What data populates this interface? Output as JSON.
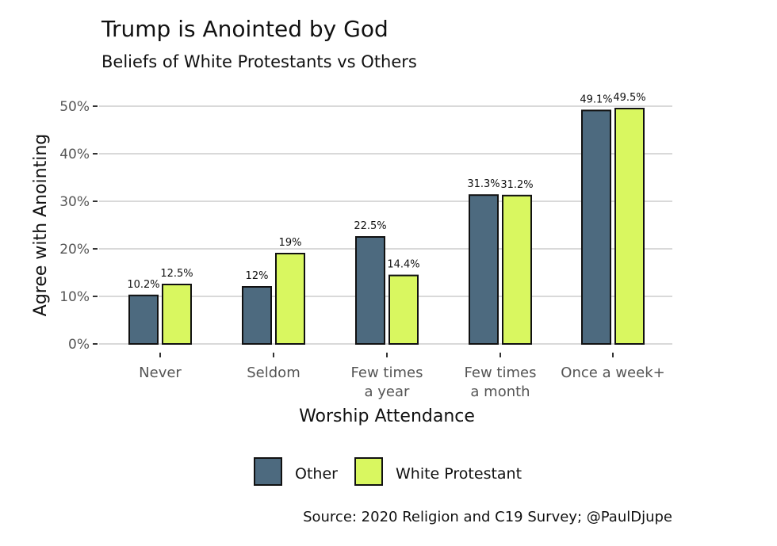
{
  "chart_data": {
    "type": "bar",
    "title": "Trump is Anointed by God",
    "subtitle": "Beliefs of White Protestants vs Others",
    "xlabel": "Worship Attendance",
    "ylabel": "Agree with Anointing",
    "categories": [
      [
        "Never"
      ],
      [
        "Seldom"
      ],
      [
        "Few times",
        "a year"
      ],
      [
        "Few times",
        "a month"
      ],
      [
        "Once a week+"
      ]
    ],
    "series": [
      {
        "name": "Other",
        "color": "#4d6a7f",
        "values": [
          10.2,
          12,
          22.5,
          31.3,
          49.1
        ],
        "labels": [
          "10.2%",
          "12%",
          "22.5%",
          "31.3%",
          "49.1%"
        ]
      },
      {
        "name": "White Protestant",
        "color": "#d9f760",
        "values": [
          12.5,
          19,
          14.4,
          31.2,
          49.5
        ],
        "labels": [
          "12.5%",
          "19%",
          "14.4%",
          "31.2%",
          "49.5%"
        ]
      }
    ],
    "yticks": [
      "0%",
      "10%",
      "20%",
      "30%",
      "40%",
      "50%"
    ],
    "ylim": [
      0,
      50
    ],
    "grid": true,
    "legend_position": "bottom",
    "caption": "Source: 2020 Religion and C19 Survey; @PaulDjupe"
  }
}
